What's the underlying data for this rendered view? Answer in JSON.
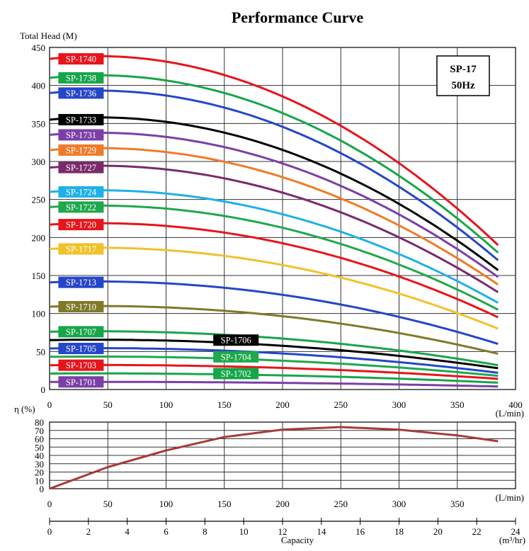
{
  "chart_data": [
    {
      "type": "line",
      "title": "Performance Curve",
      "ylabel": "Total Head (M)",
      "xlabel": "(L/min)",
      "xlim": [
        0,
        400
      ],
      "ylim": [
        0,
        450
      ],
      "x_ticks": [
        0,
        50,
        100,
        150,
        200,
        250,
        300,
        350,
        400
      ],
      "y_ticks": [
        0,
        50,
        100,
        150,
        200,
        250,
        300,
        350,
        400,
        450
      ],
      "grid": true,
      "info_box": [
        "SP-17",
        "50Hz"
      ],
      "series": [
        {
          "name": "SP-1740",
          "color": "#e8141b",
          "shutoff": 435,
          "end": 190
        },
        {
          "name": "SP-1738",
          "color": "#16a64a",
          "shutoff": 410,
          "end": 180
        },
        {
          "name": "SP-1736",
          "color": "#2546c9",
          "shutoff": 390,
          "end": 170
        },
        {
          "name": "SP-1733",
          "color": "#000000",
          "shutoff": 355,
          "end": 157
        },
        {
          "name": "SP-1731",
          "color": "#7b3fa6",
          "shutoff": 335,
          "end": 148
        },
        {
          "name": "SP-1729",
          "color": "#ef7b2a",
          "shutoff": 315,
          "end": 138
        },
        {
          "name": "SP-1727",
          "color": "#7a2a6b",
          "shutoff": 292,
          "end": 128
        },
        {
          "name": "SP-1724",
          "color": "#1fb0e8",
          "shutoff": 260,
          "end": 114
        },
        {
          "name": "SP-1722",
          "color": "#1fa84c",
          "shutoff": 240,
          "end": 105
        },
        {
          "name": "SP-1720",
          "color": "#e8141b",
          "shutoff": 217,
          "end": 95
        },
        {
          "name": "SP-1717",
          "color": "#f0c22a",
          "shutoff": 185,
          "end": 80
        },
        {
          "name": "SP-1713",
          "color": "#2546c9",
          "shutoff": 141,
          "end": 60
        },
        {
          "name": "SP-1710",
          "color": "#7f7a2a",
          "shutoff": 109,
          "end": 47
        },
        {
          "name": "SP-1707",
          "color": "#16a64a",
          "shutoff": 76,
          "end": 32
        },
        {
          "name": "SP-1706",
          "color": "#000000",
          "shutoff": 65,
          "end": 28
        },
        {
          "name": "SP-1705",
          "color": "#2546c9",
          "shutoff": 54,
          "end": 22
        },
        {
          "name": "SP-1704",
          "color": "#1fa84c",
          "shutoff": 43,
          "end": 18
        },
        {
          "name": "SP-1703",
          "color": "#e8141b",
          "shutoff": 32,
          "end": 14
        },
        {
          "name": "SP-1702",
          "color": "#16a64a",
          "shutoff": 21,
          "end": 9
        },
        {
          "name": "SP-1701",
          "color": "#7b3fa6",
          "shutoff": 10,
          "end": 4
        }
      ],
      "x_end": 385
    },
    {
      "type": "line",
      "ylabel": "η (%)",
      "xlabel": "(L/min)",
      "xlim": [
        0,
        400
      ],
      "ylim": [
        0,
        80
      ],
      "y_ticks": [
        0,
        10,
        20,
        30,
        40,
        50,
        60,
        70,
        80
      ],
      "x_ticks": [
        0,
        50,
        100,
        150,
        200,
        250,
        300,
        350
      ],
      "series": [
        {
          "color": "#a83a3a",
          "x": [
            0,
            50,
            100,
            150,
            200,
            250,
            300,
            350,
            385
          ],
          "y": [
            0,
            26,
            46,
            62,
            71,
            74,
            71,
            64,
            57
          ]
        }
      ]
    },
    {
      "type": "axis",
      "xlabel": "Capacity",
      "unit": "(m³/hr)",
      "xlim": [
        0,
        24
      ],
      "x_ticks": [
        0,
        2,
        4,
        6,
        8,
        10,
        12,
        14,
        16,
        18,
        20,
        22,
        24
      ]
    }
  ]
}
